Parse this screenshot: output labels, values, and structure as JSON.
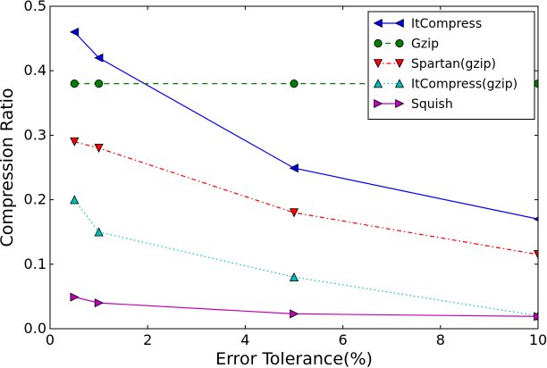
{
  "chart_data": {
    "type": "line",
    "title": "",
    "xlabel": "Error Tolerance(%)",
    "ylabel": "Compression Ratio",
    "xlim": [
      0,
      10
    ],
    "ylim": [
      0,
      0.5
    ],
    "xticks": [
      "0",
      "2",
      "4",
      "6",
      "8",
      "10"
    ],
    "yticks": [
      "0.0",
      "0.1",
      "0.2",
      "0.3",
      "0.4",
      "0.5"
    ],
    "legend_position": "top-right",
    "grid": false,
    "series": [
      {
        "name": "ItCompress",
        "color": "#0000ff",
        "marker": "triangle-left",
        "line_style": "solid",
        "x": [
          0.5,
          1,
          5,
          10
        ],
        "y": [
          0.46,
          0.42,
          0.249,
          0.17
        ]
      },
      {
        "name": "Gzip",
        "color": "#008000",
        "marker": "circle",
        "line_style": "dashed",
        "x": [
          0.5,
          1,
          5,
          10
        ],
        "y": [
          0.38,
          0.38,
          0.38,
          0.38
        ]
      },
      {
        "name": "Spartan(gzip)",
        "color": "#ff0000",
        "marker": "triangle-down",
        "line_style": "dashdot",
        "x": [
          0.5,
          1,
          5,
          10
        ],
        "y": [
          0.29,
          0.28,
          0.18,
          0.115
        ]
      },
      {
        "name": "ItCompress(gzip)",
        "color": "#00bfbf",
        "marker": "triangle-up",
        "line_style": "dotted",
        "x": [
          0.5,
          1,
          5,
          10
        ],
        "y": [
          0.2,
          0.15,
          0.08,
          0.02
        ]
      },
      {
        "name": "Squish",
        "color": "#bf00bf",
        "marker": "triangle-right",
        "line_style": "solid",
        "x": [
          0.5,
          1,
          5,
          10
        ],
        "y": [
          0.049,
          0.04,
          0.023,
          0.019
        ]
      }
    ]
  }
}
